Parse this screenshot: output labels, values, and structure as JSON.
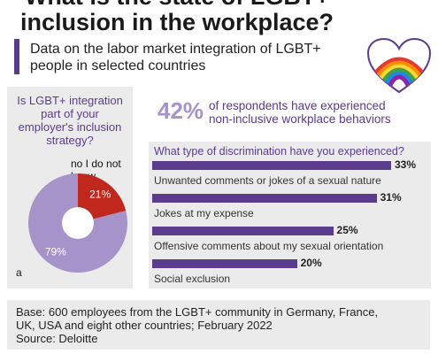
{
  "header": {
    "title_lines": [
      "What is the state of LGBT+",
      "inclusion in the workplace?"
    ],
    "subtitle_lines": [
      "Data on the labor market integration of LGBT+",
      "people in selected countries"
    ]
  },
  "colors": {
    "accent": "#5b3b8c",
    "light_accent": "#a593c9",
    "no_slice": "#c0281d",
    "panel": "#ebebeb"
  },
  "icons": {
    "header_icon": "rainbow-heart-icon"
  },
  "chart_data": [
    {
      "type": "pie",
      "title_lines": [
        "Is LGBT+ integration",
        "part of your",
        "employer's inclusion",
        "strategy?"
      ],
      "slices": [
        {
          "name": "no I do not know",
          "name_lines": [
            "no I do not",
            "know"
          ],
          "value": 21,
          "label": "21%",
          "color": "#c0281d"
        },
        {
          "name": "a",
          "value": 79,
          "label": "79%",
          "color": "#a593c9"
        }
      ],
      "donut": true
    },
    {
      "type": "bar",
      "orientation": "horizontal",
      "title": "What type of discrimination have you experienced?",
      "categories": [
        "Unwanted comments or jokes of a sexual nature",
        "Jokes at my expense",
        "Offensive comments about my sexual orientation",
        "Social exclusion"
      ],
      "values": [
        33,
        31,
        25,
        20
      ],
      "value_labels": [
        "33%",
        "31%",
        "25%",
        "20%"
      ],
      "xlim": [
        0,
        33
      ],
      "color": "#5b3b8c"
    }
  ],
  "stat": {
    "value": "42%",
    "text_lines": [
      "of respondents have experienced",
      "non-inclusive workplace behaviors"
    ]
  },
  "footer": {
    "lines": [
      "Base: 600 employees from the LGBT+ community in Germany, France,",
      "UK, USA and eight other countries; February 2022",
      "Source: Deloitte"
    ]
  }
}
